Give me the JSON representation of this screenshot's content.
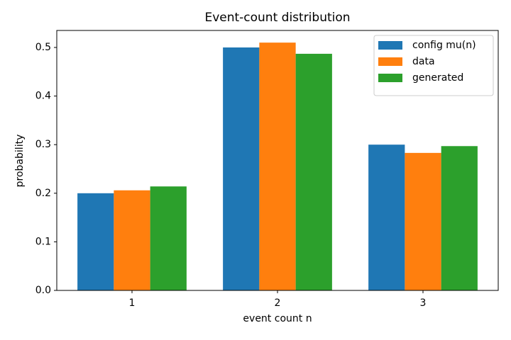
{
  "chart_data": {
    "type": "bar",
    "title": "Event-count distribution",
    "xlabel": "event count n",
    "ylabel": "probability",
    "x": [
      1,
      2,
      3
    ],
    "series": [
      {
        "name": "config mu(n)",
        "color": "#1f77b4",
        "values": [
          0.2,
          0.5,
          0.3
        ]
      },
      {
        "name": "data",
        "color": "#ff7f0e",
        "values": [
          0.206,
          0.51,
          0.283
        ]
      },
      {
        "name": "generated",
        "color": "#2ca02c",
        "values": [
          0.214,
          0.487,
          0.297
        ]
      }
    ],
    "xlim": [
      0.483,
      3.517
    ],
    "xticks": [
      1,
      2,
      3
    ],
    "ylim": [
      0,
      0.535
    ],
    "yticks": [
      {
        "value": 0,
        "label": "0.0"
      },
      0.1,
      0.2,
      0.3,
      0.4,
      0.5
    ],
    "grid": false,
    "legend": "upper right"
  }
}
